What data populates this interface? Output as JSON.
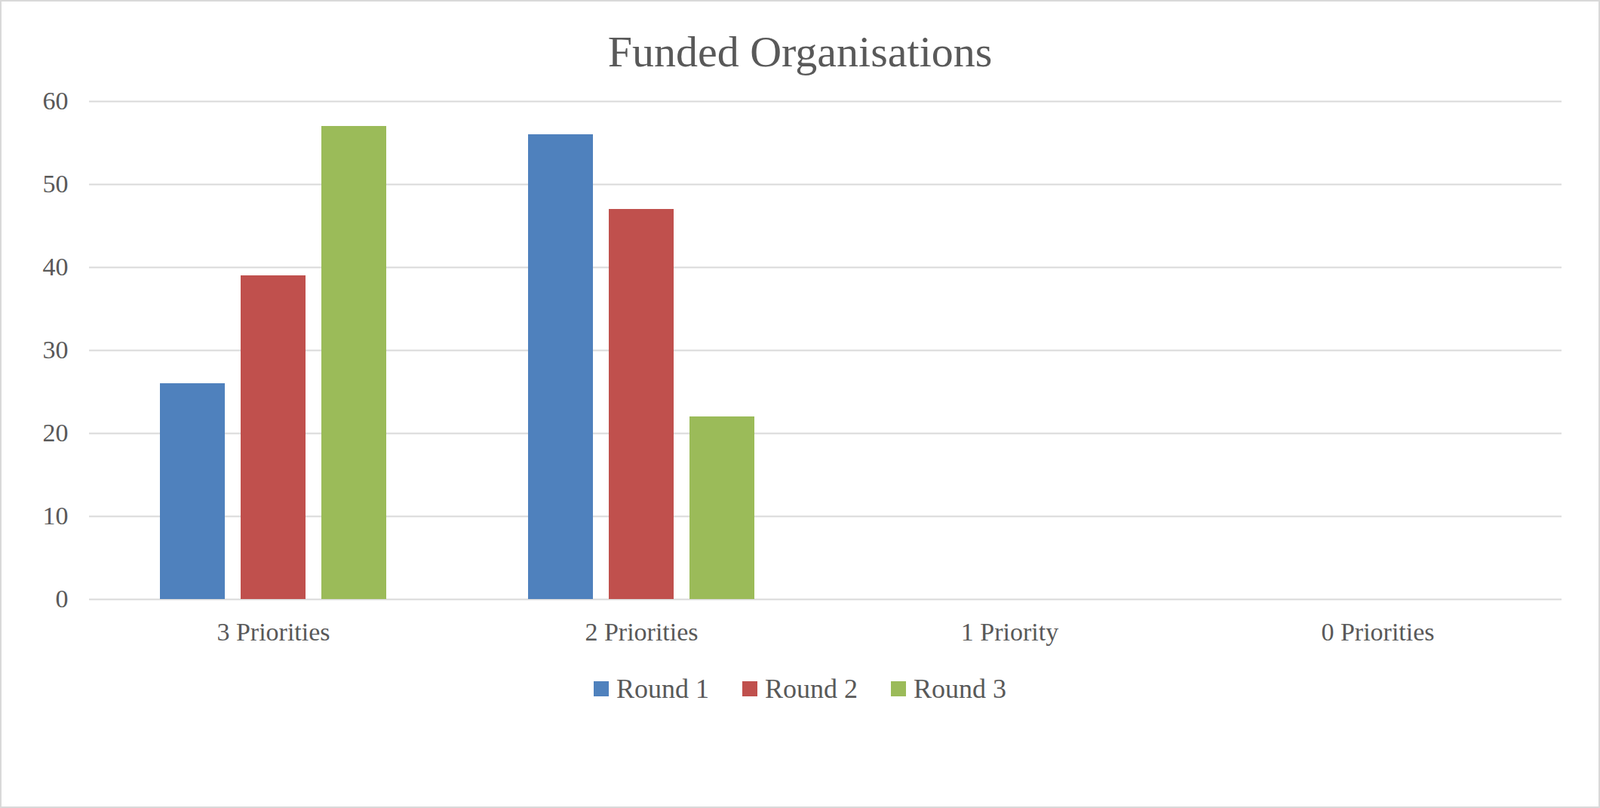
{
  "chart_data": {
    "type": "bar",
    "title": "Funded Organisations",
    "categories": [
      "3 Priorities",
      "2 Priorities",
      "1 Priority",
      "0 Priorities"
    ],
    "series": [
      {
        "name": "Round 1",
        "color": "#4f81bd",
        "values": [
          26,
          56,
          0,
          0
        ]
      },
      {
        "name": "Round 2",
        "color": "#c0504d",
        "values": [
          39,
          47,
          0,
          0
        ]
      },
      {
        "name": "Round 3",
        "color": "#9bbb59",
        "values": [
          57,
          22,
          0,
          0
        ]
      }
    ],
    "ylim": [
      0,
      60
    ],
    "yticks": [
      0,
      10,
      20,
      30,
      40,
      50,
      60
    ],
    "grid": true,
    "legend": "bottom"
  }
}
